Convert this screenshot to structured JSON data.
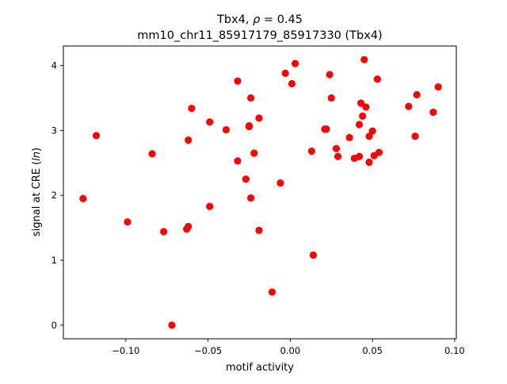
{
  "chart_data": {
    "type": "scatter",
    "title_line1_prefix": "Tbx4, ",
    "title_line1_symbol": "ρ",
    "title_line1_suffix": " = 0.45",
    "title_line2": "mm10_chr11_85917179_85917330 (Tbx4)",
    "xlabel": "motif activity",
    "ylabel_prefix": "signal at CRE (",
    "ylabel_italic": "ln",
    "ylabel_suffix": ")",
    "xlim": [
      -0.138,
      0.101
    ],
    "ylim": [
      -0.21,
      4.3
    ],
    "xticks": [
      -0.1,
      -0.05,
      0.0,
      0.05,
      0.1
    ],
    "xtick_labels": [
      "−0.10",
      "−0.05",
      "0.00",
      "0.05",
      "0.10"
    ],
    "yticks": [
      0,
      1,
      2,
      3,
      4
    ],
    "ytick_labels": [
      "0",
      "1",
      "2",
      "3",
      "4"
    ],
    "grid": false,
    "marker_color": "#ff0000",
    "series": [
      {
        "points": [
          [
            -0.126,
            1.95
          ],
          [
            -0.118,
            2.92
          ],
          [
            -0.099,
            1.59
          ],
          [
            -0.084,
            2.64
          ],
          [
            -0.077,
            1.44
          ],
          [
            -0.072,
            0.0
          ],
          [
            -0.063,
            1.48
          ],
          [
            -0.062,
            1.52
          ],
          [
            -0.062,
            2.85
          ],
          [
            -0.06,
            3.34
          ],
          [
            -0.049,
            3.13
          ],
          [
            -0.049,
            1.83
          ],
          [
            -0.039,
            3.01
          ],
          [
            -0.032,
            3.76
          ],
          [
            -0.032,
            2.53
          ],
          [
            -0.027,
            2.25
          ],
          [
            -0.025,
            3.06
          ],
          [
            -0.025,
            3.07
          ],
          [
            -0.024,
            1.96
          ],
          [
            -0.024,
            3.5
          ],
          [
            -0.022,
            2.65
          ],
          [
            -0.019,
            3.19
          ],
          [
            -0.019,
            1.46
          ],
          [
            -0.011,
            0.51
          ],
          [
            -0.006,
            2.19
          ],
          [
            -0.003,
            3.88
          ],
          [
            0.001,
            3.72
          ],
          [
            0.003,
            4.03
          ],
          [
            0.013,
            2.68
          ],
          [
            0.014,
            1.08
          ],
          [
            0.021,
            3.02
          ],
          [
            0.022,
            3.02
          ],
          [
            0.024,
            3.86
          ],
          [
            0.025,
            3.5
          ],
          [
            0.028,
            2.72
          ],
          [
            0.029,
            2.6
          ],
          [
            0.036,
            2.89
          ],
          [
            0.039,
            2.57
          ],
          [
            0.042,
            3.09
          ],
          [
            0.042,
            2.6
          ],
          [
            0.043,
            3.42
          ],
          [
            0.044,
            3.22
          ],
          [
            0.045,
            4.09
          ],
          [
            0.046,
            3.36
          ],
          [
            0.048,
            2.51
          ],
          [
            0.048,
            2.91
          ],
          [
            0.05,
            2.99
          ],
          [
            0.051,
            2.61
          ],
          [
            0.053,
            3.79
          ],
          [
            0.054,
            2.66
          ],
          [
            0.072,
            3.37
          ],
          [
            0.076,
            2.91
          ],
          [
            0.077,
            3.55
          ],
          [
            0.087,
            3.28
          ],
          [
            0.09,
            3.67
          ]
        ]
      }
    ]
  }
}
